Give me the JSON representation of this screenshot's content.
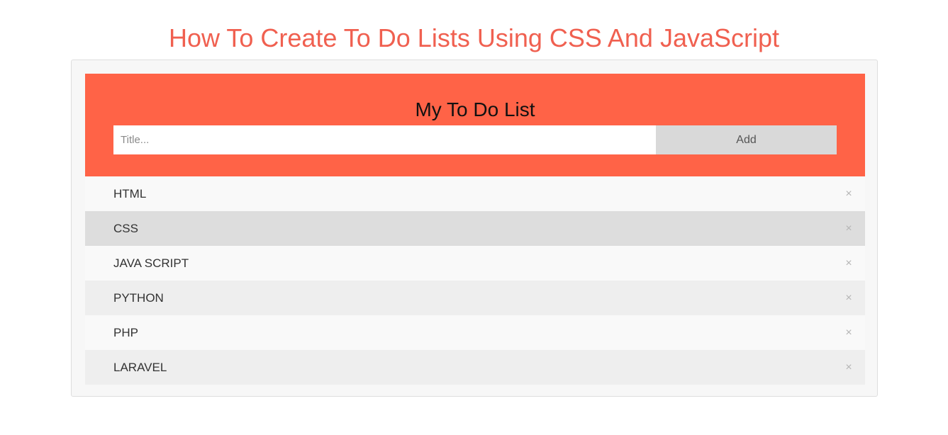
{
  "page": {
    "title": "How To Create To Do Lists Using CSS And JavaScript"
  },
  "todo_app": {
    "header_title": "My To Do List",
    "input": {
      "placeholder": "Title...",
      "value": ""
    },
    "add_label": "Add",
    "items": [
      {
        "label": "HTML",
        "close": "×"
      },
      {
        "label": "CSS",
        "close": "×"
      },
      {
        "label": "JAVA SCRIPT",
        "close": "×"
      },
      {
        "label": "PYTHON",
        "close": "×"
      },
      {
        "label": "PHP",
        "close": "×"
      },
      {
        "label": "LARAVEL",
        "close": "×"
      }
    ],
    "hovered_item": "CSS"
  },
  "colors": {
    "title": "#f06050",
    "header_background": "#ff6347",
    "add_button_background": "#d9d9d9",
    "row_odd": "#f9f9f9",
    "row_even": "#eeeeee",
    "row_hover": "#dddddd"
  }
}
